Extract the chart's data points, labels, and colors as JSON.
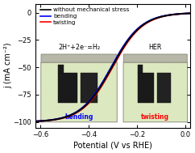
{
  "xlabel": "Potential (V vs RHE)",
  "ylabel": "j (mA cm⁻²)",
  "xlim": [
    -0.62,
    0.02
  ],
  "ylim": [
    -105,
    8
  ],
  "xticks": [
    -0.6,
    -0.4,
    -0.2,
    0.0
  ],
  "yticks": [
    0,
    -25,
    -50,
    -75,
    -100
  ],
  "legend_labels": [
    "without mechanical stress",
    "bending",
    "twisting"
  ],
  "legend_colors": [
    "black",
    "blue",
    "red"
  ],
  "annotation1": "2H⁺+2e⁻=H₂",
  "annotation2": "HER",
  "curve_linewidth": 1.4,
  "beaker_left_color": "#d8e8c8",
  "beaker_right_color": "#d8e8c8",
  "beaker_rim_color": "#a0a090",
  "liquid_color": "#e0ecd0",
  "label_bend_color": "blue",
  "label_twist_color": "red"
}
